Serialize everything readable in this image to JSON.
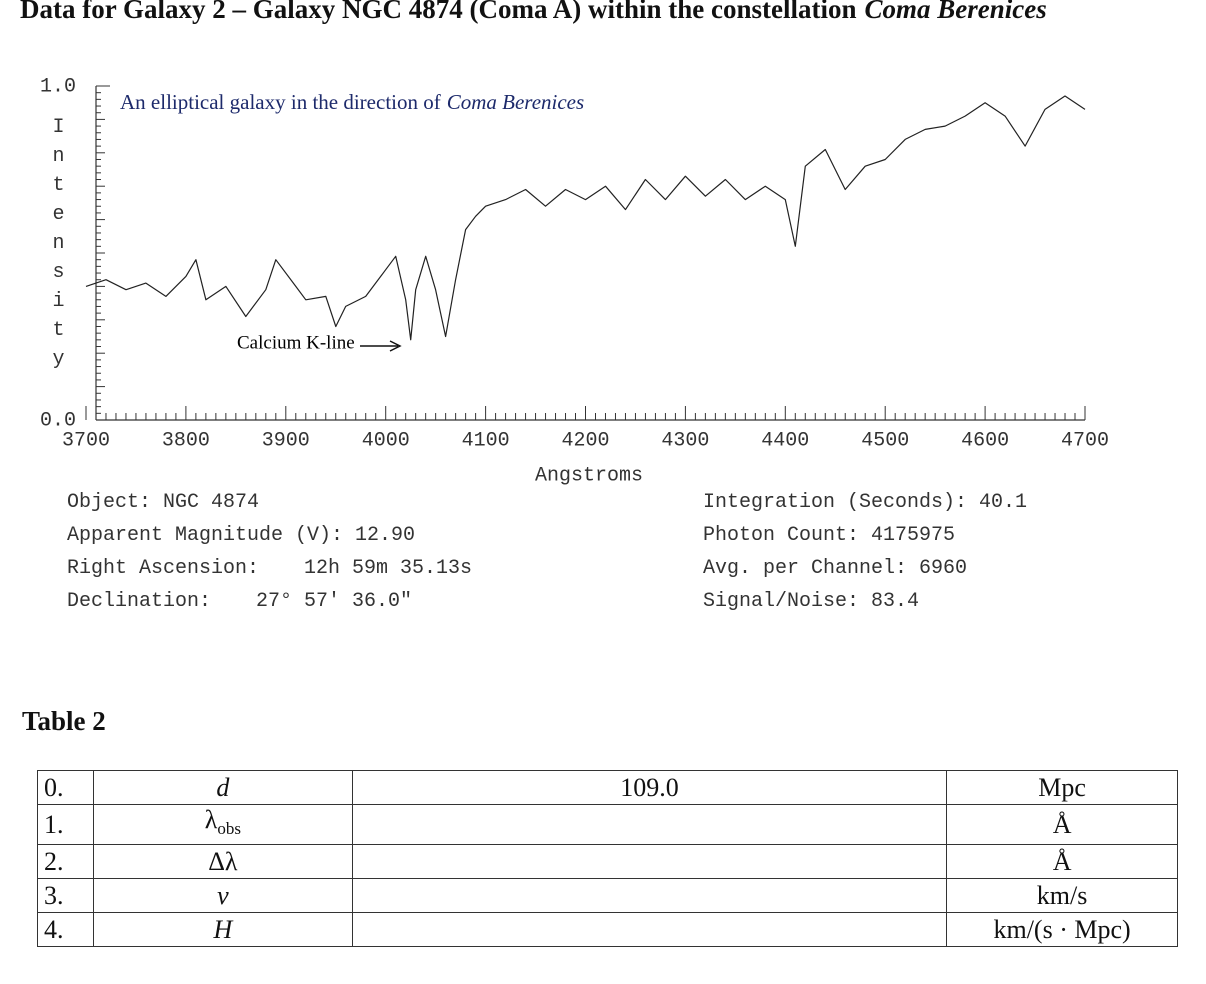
{
  "header": {
    "title": "Data for Galaxy 2 – Galaxy NGC 4874 (Coma A) within the constellation",
    "title_italic": "Coma Berenices"
  },
  "chart_data": {
    "type": "line",
    "subtitle": "An elliptical galaxy in the direction of",
    "subtitle_italic": "Coma Berenices",
    "annotation": "Calcium K-line",
    "x_label": "Angstroms",
    "y_label": "Intensity",
    "xlim": [
      3700,
      4700
    ],
    "xticks": [
      3700,
      3800,
      3900,
      4000,
      4100,
      4200,
      4300,
      4400,
      4500,
      4600,
      4700
    ],
    "ylim": [
      0,
      1
    ],
    "yticks": [
      {
        "value": 0,
        "label": "0.0"
      },
      {
        "value": 1,
        "label": "1.0"
      }
    ],
    "series": [
      {
        "color": "#222222",
        "x": [
          3700,
          3720,
          3740,
          3760,
          3780,
          3800,
          3810,
          3820,
          3840,
          3860,
          3880,
          3890,
          3910,
          3920,
          3940,
          3950,
          3960,
          3980,
          4000,
          4010,
          4020,
          4025,
          4030,
          4040,
          4050,
          4060,
          4070,
          4080,
          4090,
          4100,
          4120,
          4140,
          4160,
          4180,
          4200,
          4220,
          4240,
          4260,
          4280,
          4300,
          4320,
          4340,
          4360,
          4380,
          4400,
          4410,
          4420,
          4440,
          4460,
          4480,
          4500,
          4520,
          4540,
          4560,
          4580,
          4600,
          4620,
          4640,
          4660,
          4680,
          4700
        ],
        "values": [
          0.4,
          0.42,
          0.39,
          0.41,
          0.37,
          0.43,
          0.48,
          0.36,
          0.4,
          0.31,
          0.39,
          0.48,
          0.4,
          0.36,
          0.37,
          0.28,
          0.34,
          0.37,
          0.45,
          0.49,
          0.36,
          0.24,
          0.39,
          0.49,
          0.39,
          0.25,
          0.42,
          0.57,
          0.61,
          0.64,
          0.66,
          0.69,
          0.64,
          0.69,
          0.66,
          0.7,
          0.63,
          0.72,
          0.66,
          0.73,
          0.67,
          0.72,
          0.66,
          0.7,
          0.66,
          0.52,
          0.76,
          0.81,
          0.69,
          0.76,
          0.78,
          0.84,
          0.87,
          0.88,
          0.91,
          0.95,
          0.91,
          0.82,
          0.93,
          0.97,
          0.93
        ]
      }
    ]
  },
  "info_left": [
    {
      "label": "Object:",
      "value": "NGC 4874"
    },
    {
      "label": "Apparent Magnitude (V):",
      "value": "12.90"
    },
    {
      "label": "Right Ascension:",
      "value": "12h 59m 35.13s"
    },
    {
      "label": "Declination:",
      "value": "27° 57' 36.0\""
    }
  ],
  "info_right": [
    {
      "label": "Integration (Seconds):",
      "value": "40.1"
    },
    {
      "label": "Photon Count:",
      "value": "4175975"
    },
    {
      "label": "Avg. per Channel:",
      "value": "6960"
    },
    {
      "label": "Signal/Noise:",
      "value": "83.4"
    }
  ],
  "table": {
    "title": "Table 2",
    "rows": [
      {
        "num": "0.",
        "symbol": "d",
        "value": "109.0",
        "unit": "Mpc"
      },
      {
        "num": "1.",
        "symbol": "λ",
        "sub": "obs",
        "unit": "Å"
      },
      {
        "num": "2.",
        "symbol": "Δλ",
        "unit": "Å"
      },
      {
        "num": "3.",
        "symbol": "v",
        "unit": "km/s"
      },
      {
        "num": "4.",
        "symbol": "H",
        "unit": "km/(s · Mpc)"
      }
    ]
  }
}
